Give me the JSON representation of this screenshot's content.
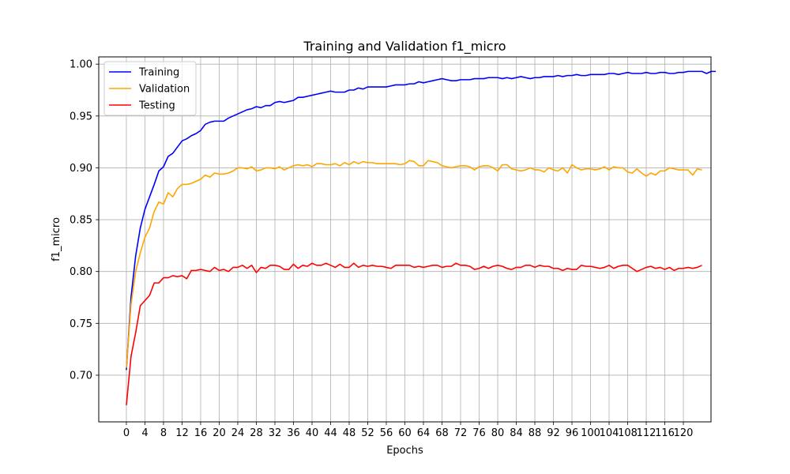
{
  "chart_data": {
    "type": "line",
    "title": "Training and Validation f1_micro",
    "xlabel": "Epochs",
    "ylabel": "f1_micro",
    "xlim": [
      -5.95,
      125.95
    ],
    "ylim": [
      0.655,
      1.007
    ],
    "xticks": [
      0,
      4,
      8,
      12,
      16,
      20,
      24,
      28,
      32,
      36,
      40,
      44,
      48,
      52,
      56,
      60,
      64,
      68,
      72,
      76,
      80,
      84,
      88,
      92,
      96,
      100,
      104,
      108,
      112,
      116,
      120
    ],
    "yticks": [
      0.7,
      0.75,
      0.8,
      0.85,
      0.9,
      0.95,
      1.0
    ],
    "ytick_labels": [
      "0.70",
      "0.75",
      "0.80",
      "0.85",
      "0.90",
      "0.95",
      "1.00"
    ],
    "grid": true,
    "legend_position": "top-left",
    "series": [
      {
        "name": "Training",
        "color": "#0000ff",
        "values": [
          0.705,
          0.775,
          0.815,
          0.842,
          0.86,
          0.872,
          0.884,
          0.897,
          0.901,
          0.911,
          0.914,
          0.92,
          0.926,
          0.928,
          0.931,
          0.933,
          0.936,
          0.942,
          0.944,
          0.945,
          0.945,
          0.945,
          0.948,
          0.95,
          0.952,
          0.954,
          0.956,
          0.957,
          0.959,
          0.958,
          0.96,
          0.96,
          0.963,
          0.964,
          0.963,
          0.964,
          0.965,
          0.968,
          0.968,
          0.969,
          0.97,
          0.971,
          0.972,
          0.973,
          0.974,
          0.973,
          0.973,
          0.973,
          0.975,
          0.975,
          0.977,
          0.976,
          0.978,
          0.978,
          0.978,
          0.978,
          0.978,
          0.979,
          0.98,
          0.98,
          0.98,
          0.981,
          0.981,
          0.983,
          0.982,
          0.983,
          0.984,
          0.985,
          0.986,
          0.985,
          0.984,
          0.984,
          0.985,
          0.985,
          0.985,
          0.986,
          0.986,
          0.986,
          0.987,
          0.987,
          0.987,
          0.986,
          0.987,
          0.986,
          0.987,
          0.988,
          0.987,
          0.986,
          0.987,
          0.987,
          0.988,
          0.988,
          0.988,
          0.989,
          0.988,
          0.989,
          0.989,
          0.99,
          0.989,
          0.989,
          0.99,
          0.99,
          0.99,
          0.99,
          0.991,
          0.991,
          0.99,
          0.991,
          0.992,
          0.991,
          0.991,
          0.991,
          0.992,
          0.991,
          0.991,
          0.992,
          0.992,
          0.991,
          0.991,
          0.992,
          0.992,
          0.993,
          0.993,
          0.993,
          0.993,
          0.991,
          0.993,
          0.993
        ]
      },
      {
        "name": "Validation",
        "color": "#ffa500",
        "values": [
          0.707,
          0.768,
          0.8,
          0.818,
          0.833,
          0.842,
          0.858,
          0.867,
          0.865,
          0.876,
          0.872,
          0.88,
          0.884,
          0.884,
          0.885,
          0.887,
          0.889,
          0.893,
          0.891,
          0.895,
          0.894,
          0.894,
          0.895,
          0.897,
          0.9,
          0.9,
          0.899,
          0.901,
          0.897,
          0.898,
          0.9,
          0.9,
          0.899,
          0.901,
          0.898,
          0.9,
          0.902,
          0.903,
          0.902,
          0.903,
          0.901,
          0.904,
          0.904,
          0.903,
          0.903,
          0.904,
          0.902,
          0.905,
          0.903,
          0.906,
          0.904,
          0.906,
          0.905,
          0.905,
          0.904,
          0.904,
          0.904,
          0.904,
          0.904,
          0.903,
          0.904,
          0.907,
          0.906,
          0.902,
          0.902,
          0.907,
          0.906,
          0.905,
          0.902,
          0.901,
          0.9,
          0.901,
          0.902,
          0.902,
          0.901,
          0.898,
          0.901,
          0.902,
          0.902,
          0.9,
          0.897,
          0.903,
          0.903,
          0.899,
          0.898,
          0.897,
          0.898,
          0.9,
          0.898,
          0.898,
          0.896,
          0.9,
          0.898,
          0.897,
          0.9,
          0.895,
          0.903,
          0.9,
          0.898,
          0.899,
          0.899,
          0.898,
          0.899,
          0.901,
          0.898,
          0.901,
          0.9,
          0.9,
          0.896,
          0.895,
          0.899,
          0.895,
          0.892,
          0.895,
          0.893,
          0.897,
          0.897,
          0.9,
          0.899,
          0.898,
          0.898,
          0.898,
          0.893,
          0.899,
          0.898
        ]
      },
      {
        "name": "Testing",
        "color": "#ff0000",
        "values": [
          0.671,
          0.718,
          0.741,
          0.767,
          0.772,
          0.777,
          0.789,
          0.789,
          0.794,
          0.794,
          0.796,
          0.795,
          0.796,
          0.793,
          0.801,
          0.801,
          0.802,
          0.801,
          0.8,
          0.804,
          0.801,
          0.802,
          0.8,
          0.804,
          0.804,
          0.806,
          0.803,
          0.806,
          0.799,
          0.804,
          0.803,
          0.806,
          0.806,
          0.805,
          0.802,
          0.802,
          0.807,
          0.803,
          0.806,
          0.805,
          0.808,
          0.806,
          0.806,
          0.808,
          0.806,
          0.804,
          0.807,
          0.804,
          0.804,
          0.808,
          0.804,
          0.806,
          0.805,
          0.806,
          0.805,
          0.805,
          0.804,
          0.803,
          0.806,
          0.806,
          0.806,
          0.806,
          0.804,
          0.805,
          0.804,
          0.805,
          0.806,
          0.806,
          0.804,
          0.805,
          0.805,
          0.808,
          0.806,
          0.806,
          0.805,
          0.802,
          0.803,
          0.805,
          0.803,
          0.805,
          0.806,
          0.805,
          0.803,
          0.802,
          0.804,
          0.804,
          0.806,
          0.806,
          0.804,
          0.806,
          0.805,
          0.805,
          0.803,
          0.803,
          0.801,
          0.803,
          0.802,
          0.802,
          0.806,
          0.805,
          0.805,
          0.804,
          0.803,
          0.804,
          0.806,
          0.803,
          0.805,
          0.806,
          0.806,
          0.803,
          0.8,
          0.802,
          0.804,
          0.805,
          0.803,
          0.804,
          0.802,
          0.804,
          0.801,
          0.803,
          0.803,
          0.804,
          0.803,
          0.804,
          0.806
        ]
      }
    ]
  }
}
